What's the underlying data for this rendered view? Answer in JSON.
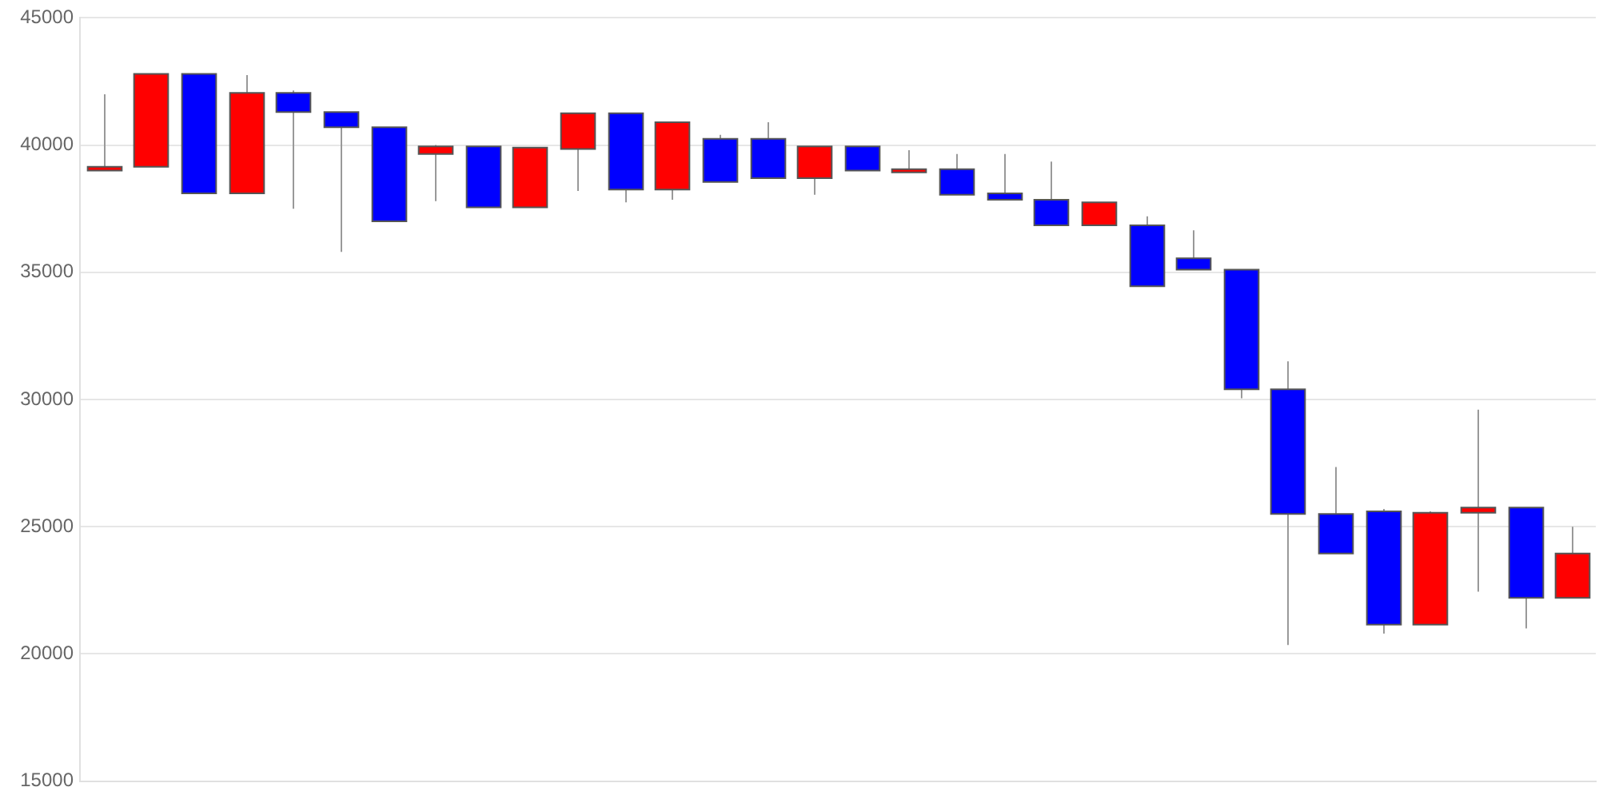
{
  "chart_data": {
    "type": "candlestick",
    "categories": [
      null,
      null,
      null,
      null,
      null,
      null,
      null,
      null,
      null,
      null,
      null,
      null,
      null,
      null,
      null,
      null,
      null,
      null,
      null,
      null,
      null,
      null,
      null,
      null,
      null,
      null,
      null,
      null,
      null,
      null,
      null,
      null
    ],
    "ohlc": [
      [
        39000,
        42000,
        39000,
        39150
      ],
      [
        39150,
        42800,
        39150,
        42800
      ],
      [
        42800,
        42800,
        38100,
        38100
      ],
      [
        38100,
        42750,
        38100,
        42050
      ],
      [
        42050,
        42150,
        37500,
        41300
      ],
      [
        41300,
        41300,
        35800,
        40700
      ],
      [
        40700,
        40700,
        37000,
        37000
      ],
      [
        39650,
        40000,
        37800,
        39950
      ],
      [
        39950,
        39950,
        37550,
        37550
      ],
      [
        37550,
        39900,
        37550,
        39900
      ],
      [
        39850,
        41250,
        38200,
        41250
      ],
      [
        41250,
        41250,
        37750,
        38250
      ],
      [
        38250,
        40900,
        37850,
        40900
      ],
      [
        40250,
        40400,
        38550,
        38550
      ],
      [
        40250,
        40900,
        38700,
        38700
      ],
      [
        38700,
        39950,
        38050,
        39950
      ],
      [
        39950,
        39950,
        39000,
        39000
      ],
      [
        39000,
        39800,
        39000,
        39050
      ],
      [
        39050,
        39650,
        38050,
        38050
      ],
      [
        38100,
        39650,
        37850,
        37850
      ],
      [
        37850,
        39350,
        36850,
        36850
      ],
      [
        36850,
        37750,
        36850,
        37750
      ],
      [
        36850,
        37200,
        34450,
        34450
      ],
      [
        35550,
        36650,
        35100,
        35100
      ],
      [
        35100,
        35100,
        30050,
        30400
      ],
      [
        30400,
        31500,
        20350,
        25500
      ],
      [
        25500,
        27350,
        23950,
        23950
      ],
      [
        25600,
        25700,
        20800,
        21150
      ],
      [
        21150,
        25600,
        21150,
        25550
      ],
      [
        25550,
        29600,
        22450,
        25750
      ],
      [
        25750,
        25750,
        21000,
        22200
      ],
      [
        22200,
        25000,
        22200,
        23950
      ]
    ],
    "colors": [
      "#ff0000",
      "#ff0000",
      "#0000ff",
      "#ff0000",
      "#0000ff",
      "#0000ff",
      "#0000ff",
      "#ff0000",
      "#0000ff",
      "#ff0000",
      "#ff0000",
      "#0000ff",
      "#ff0000",
      "#0000ff",
      "#0000ff",
      "#ff0000",
      "#0000ff",
      "#ff0000",
      "#0000ff",
      "#0000ff",
      "#0000ff",
      "#ff0000",
      "#0000ff",
      "#0000ff",
      "#0000ff",
      "#0000ff",
      "#0000ff",
      "#0000ff",
      "#ff0000",
      "#ff0000",
      "#0000ff",
      "#ff0000"
    ],
    "ylim": [
      15000,
      45000
    ],
    "yticks": [
      15000,
      20000,
      25000,
      30000,
      35000,
      40000,
      45000
    ],
    "grid": "y",
    "tick_labels": "y"
  }
}
